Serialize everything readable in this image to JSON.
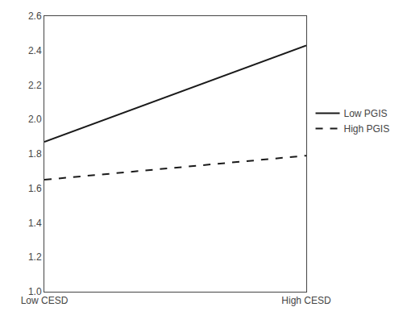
{
  "chart_data": {
    "type": "line",
    "categories": [
      "Low CESD",
      "High CESD"
    ],
    "series": [
      {
        "name": "Low PGIS",
        "color": "#1a1a1a",
        "line_style": "solid",
        "values": [
          1.87,
          2.43
        ]
      },
      {
        "name": "High PGIS",
        "color": "#1a1a1a",
        "line_style": "dashed",
        "values": [
          1.65,
          1.79
        ]
      }
    ],
    "ylim": [
      1.0,
      2.6
    ],
    "yticks": [
      {
        "value": 1.0,
        "label": "1.0"
      },
      1.2,
      1.4,
      1.6,
      1.8,
      {
        "value": 2.0,
        "label": "2.0"
      },
      2.2,
      2.4,
      2.6
    ],
    "grid": false,
    "legend": "right"
  }
}
